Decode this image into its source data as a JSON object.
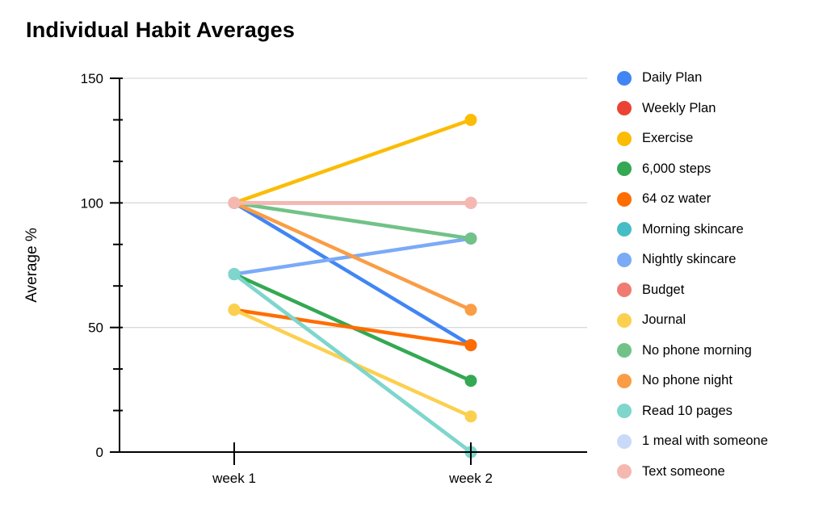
{
  "page": {
    "background": "#ffffff"
  },
  "chart_data": {
    "type": "line",
    "title": "Individual Habit Averages",
    "xlabel": "",
    "ylabel": "Average %",
    "categories": [
      "week 1",
      "week 2"
    ],
    "y_ticks": [
      0,
      50,
      100,
      150
    ],
    "ylim": [
      0,
      150
    ],
    "grid": "horizontal-major",
    "legend_position": "right",
    "series": [
      {
        "name": "Daily Plan",
        "color": "#4285F4",
        "values": [
          100,
          42.9
        ]
      },
      {
        "name": "Weekly Plan",
        "color": "#EA4335",
        "values": [
          100,
          100
        ]
      },
      {
        "name": "Exercise",
        "color": "#FBBC04",
        "values": [
          100,
          133.3
        ]
      },
      {
        "name": "6,000 steps",
        "color": "#34A853",
        "values": [
          71.4,
          28.6
        ]
      },
      {
        "name": "64 oz water",
        "color": "#FF6D01",
        "values": [
          57.1,
          42.9
        ]
      },
      {
        "name": "Morning skincare",
        "color": "#46BDC6",
        "values": [
          71.4,
          0
        ]
      },
      {
        "name": "Nightly skincare",
        "color": "#7BAAF7",
        "values": [
          71.4,
          85.7
        ]
      },
      {
        "name": "Budget",
        "color": "#F07B72",
        "values": [
          100,
          100
        ]
      },
      {
        "name": "Journal",
        "color": "#FCD04F",
        "values": [
          57.1,
          14.3
        ]
      },
      {
        "name": "No phone morning",
        "color": "#71C287",
        "values": [
          100,
          85.7
        ]
      },
      {
        "name": "No phone night",
        "color": "#FA9D45",
        "values": [
          100,
          57.1
        ]
      },
      {
        "name": "Read 10 pages",
        "color": "#7ED6CC",
        "values": [
          71.4,
          0
        ]
      },
      {
        "name": "1 meal with someone",
        "color": "#C9DAF8",
        "values": [
          100,
          100
        ]
      },
      {
        "name": "Text someone",
        "color": "#F5B8B0",
        "values": [
          100,
          100
        ]
      }
    ]
  },
  "colors": {
    "gridline": "#d9d9d9",
    "axis": "#000000",
    "text": "#000000"
  }
}
